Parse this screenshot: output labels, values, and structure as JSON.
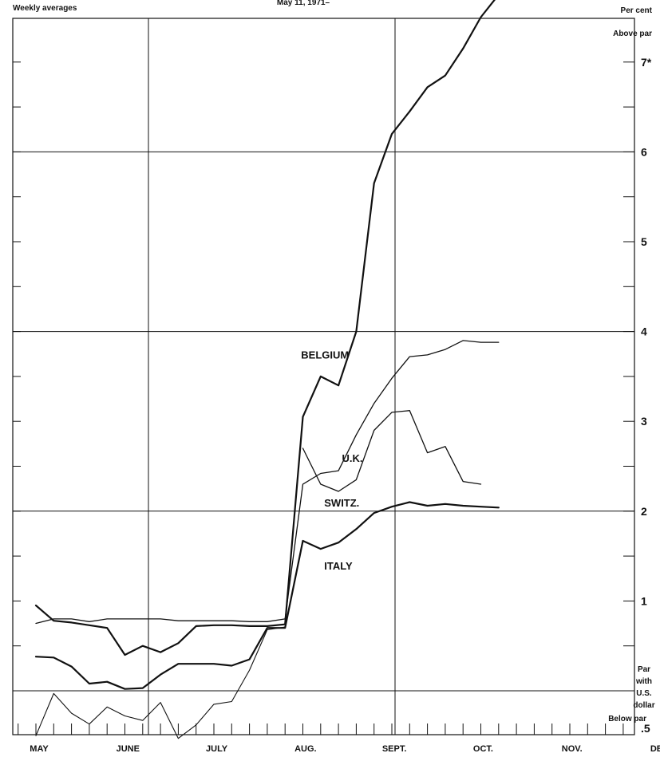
{
  "header": {
    "left": "Weekly averages",
    "center": "May 11, 1971–",
    "right": "Per cent"
  },
  "chart_data": {
    "type": "line",
    "y_unit_label": "Per cent",
    "above_label": "Above par",
    "below_label": "Below par",
    "par_label": [
      "Par",
      "with",
      "U.S.",
      "dollar"
    ],
    "ylim": [
      -0.5,
      7.5
    ],
    "y_ticks": [
      {
        "value": 7,
        "label": "7*"
      },
      {
        "value": 6,
        "label": "6"
      },
      {
        "value": 5,
        "label": "5"
      },
      {
        "value": 4,
        "label": "4"
      },
      {
        "value": 3,
        "label": "3"
      },
      {
        "value": 2,
        "label": "2"
      },
      {
        "value": 1,
        "label": "1"
      },
      {
        "value": -0.5,
        "label": ".5"
      }
    ],
    "months": [
      "MAY",
      "JUNE",
      "JULY",
      "AUG.",
      "SEPT.",
      "OCT.",
      "NOV.",
      "DEC."
    ],
    "x_unit": "weeks since May 11, 1971",
    "series": [
      {
        "name": "BELGIUM",
        "label_week": 14.9,
        "label_value": 3.7,
        "width": 2.2,
        "x": [
          0,
          1,
          2,
          3,
          4,
          5,
          6,
          7,
          8,
          9,
          10,
          11,
          12,
          13,
          14,
          15,
          16,
          17,
          18,
          19,
          20,
          21,
          22,
          23,
          24,
          25,
          26
        ],
        "values": [
          0.95,
          0.78,
          0.76,
          0.73,
          0.7,
          0.4,
          0.5,
          0.43,
          0.53,
          0.72,
          0.73,
          0.73,
          0.72,
          0.72,
          0.74,
          3.05,
          3.5,
          3.4,
          4.0,
          5.65,
          6.2,
          6.45,
          6.72,
          6.85,
          7.15,
          7.5,
          7.75
        ]
      },
      {
        "name": "U.K.",
        "label_week": 17.2,
        "label_value": 2.55,
        "width": 1.3,
        "x": [
          0,
          1,
          2,
          3,
          4,
          5,
          6,
          7,
          8,
          9,
          10,
          11,
          12,
          13,
          14,
          15,
          16,
          17,
          18,
          19,
          20,
          21,
          22,
          23,
          24,
          25,
          26
        ],
        "values": [
          0.75,
          0.8,
          0.8,
          0.77,
          0.8,
          0.8,
          0.8,
          0.8,
          0.78,
          0.78,
          0.78,
          0.78,
          0.77,
          0.77,
          0.8,
          2.3,
          2.42,
          2.45,
          2.85,
          3.2,
          3.48,
          3.72,
          3.74,
          3.8,
          3.9,
          3.88,
          3.88
        ]
      },
      {
        "name": "SWITZ.",
        "label_week": 16.2,
        "label_value": 2.05,
        "width": 1.3,
        "x": [
          15,
          16,
          17,
          18,
          19,
          20,
          21,
          22,
          23,
          24,
          25
        ],
        "values": [
          2.7,
          2.3,
          2.22,
          2.35,
          2.9,
          3.1,
          3.12,
          2.65,
          2.72,
          2.33,
          2.3
        ]
      },
      {
        "name": "ITALY",
        "label_week": 16.2,
        "label_value": 1.35,
        "width": 2.2,
        "x": [
          0,
          1,
          2,
          3,
          4,
          5,
          6,
          7,
          8,
          9,
          10,
          11,
          12,
          13,
          14,
          15,
          16,
          17,
          18,
          19,
          20,
          21,
          22,
          23,
          24,
          25,
          26
        ],
        "values": [
          0.38,
          0.37,
          0.27,
          0.08,
          0.1,
          0.02,
          0.03,
          0.18,
          0.3,
          0.3,
          0.3,
          0.28,
          0.35,
          0.7,
          0.7,
          1.67,
          1.58,
          1.65,
          1.8,
          1.98,
          2.05,
          2.1,
          2.06,
          2.08,
          2.06,
          2.05,
          2.04
        ]
      },
      {
        "name": "",
        "width": 1.1,
        "x": [
          0,
          1,
          2,
          3,
          4,
          5,
          6,
          7,
          8,
          9,
          10,
          11,
          12,
          13,
          14
        ],
        "values": [
          -0.5,
          -0.03,
          -0.25,
          -0.37,
          -0.18,
          -0.28,
          -0.33,
          -0.13,
          -0.53,
          -0.38,
          -0.15,
          -0.12,
          0.23,
          0.68,
          0.71
        ]
      }
    ]
  }
}
